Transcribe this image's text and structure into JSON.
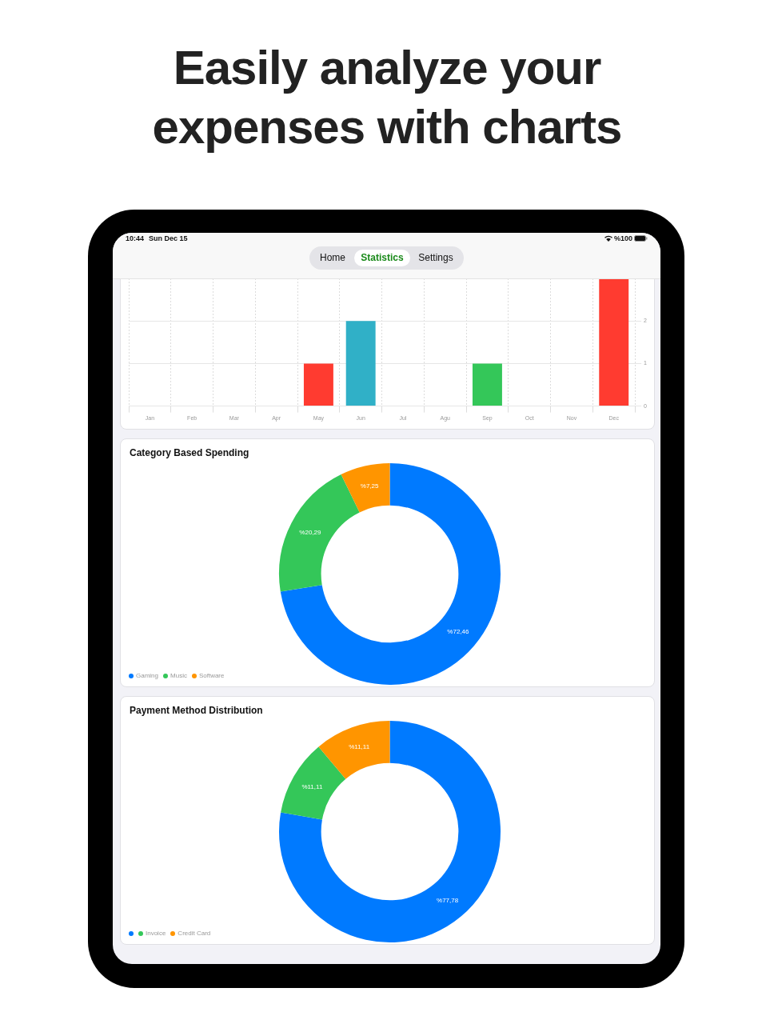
{
  "chart_data": [
    {
      "type": "other",
      "title": "Easily analyze your expenses with charts",
      "annotations": [
        "10:44",
        "Sun Dec 15",
        "%100",
        "Home",
        "Statistics",
        "Settings"
      ]
    },
    {
      "type": "bar",
      "categories": [
        "Jan",
        "Feb",
        "Mar",
        "Apr",
        "May",
        "Jun",
        "Jul",
        "Agu",
        "Sep",
        "Oct",
        "Nov",
        "Dec"
      ],
      "values": [
        0,
        0,
        0,
        0,
        1,
        2,
        0,
        0,
        1,
        0,
        0,
        3
      ],
      "colors": [
        "#ff3b30",
        "#ff3b30",
        "#ff3b30",
        "#ff3b30",
        "#ff3b30",
        "#30b0c7",
        "#ff3b30",
        "#ff3b30",
        "#34c759",
        "#ff3b30",
        "#ff3b30",
        "#ff3b30"
      ],
      "ylim": [
        0,
        3
      ],
      "yticks": [
        0,
        1,
        2
      ],
      "grid": true
    },
    {
      "type": "donut",
      "title": "Category Based Spending",
      "categories": [
        "Gaming",
        "Music",
        "Software"
      ],
      "values": [
        72.46,
        20.29,
        7.25
      ],
      "value_labels": [
        "%72,46",
        "%20,29",
        "%7,25"
      ],
      "colors": [
        "#007aff",
        "#34c759",
        "#ff9500"
      ],
      "legend": "bottom left"
    },
    {
      "type": "donut",
      "title": "Payment Method Distribution",
      "categories": [
        null,
        "Invoice",
        "Credit Card"
      ],
      "values": [
        77.78,
        11.11,
        11.11
      ],
      "value_labels": [
        "%77,78",
        "%11,11",
        "%11,11"
      ],
      "colors": [
        "#007aff",
        "#34c759",
        "#ff9500"
      ],
      "legend": "bottom left"
    }
  ]
}
